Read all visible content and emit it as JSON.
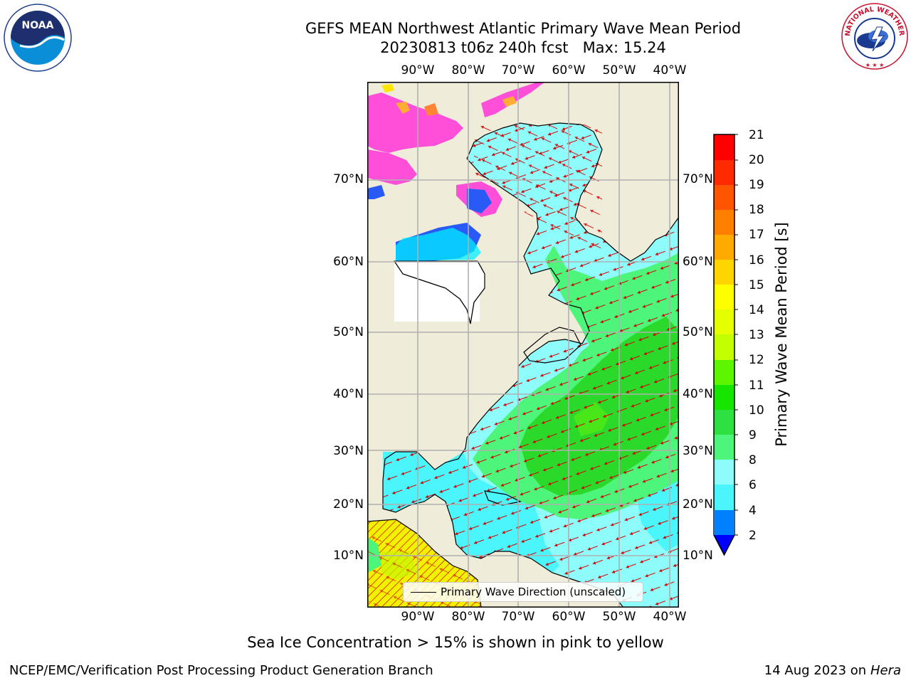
{
  "header": {
    "title_line1": "GEFS MEAN Northwest Atlantic Primary Wave Mean Period",
    "title_line2": "20230813 t06z 240h fcst   Max: 15.24"
  },
  "logos": {
    "noaa_text": "NOAA",
    "nws_text": "NATIONAL WEATHER SERVICE"
  },
  "map": {
    "lon_labels": [
      "90°W",
      "80°W",
      "70°W",
      "60°W",
      "50°W",
      "40°W"
    ],
    "lat_labels": [
      "70°N",
      "60°N",
      "50°N",
      "40°N",
      "30°N",
      "20°N",
      "10°N"
    ],
    "colors": {
      "land": "#efedd9",
      "water_no_data": "#ffffff",
      "grid": "#b0b0b0",
      "arrow": "#d40000"
    }
  },
  "colorbar": {
    "label": "Primary Wave Mean Period [s]",
    "ticks": [
      "21",
      "20",
      "19",
      "18",
      "17",
      "16",
      "15",
      "14",
      "13",
      "12",
      "11",
      "10",
      "9",
      "8",
      "6",
      "4",
      "2"
    ],
    "under_color": "#0000ff"
  },
  "legend": {
    "text": "Primary Wave Direction (unscaled)"
  },
  "footer": {
    "caption": "Sea Ice Concentration > 15% is shown in pink to yellow",
    "left": "NCEP/EMC/Verification Post Processing Product Generation Branch",
    "date": "14 Aug 2023 on",
    "host": "Hera"
  }
}
